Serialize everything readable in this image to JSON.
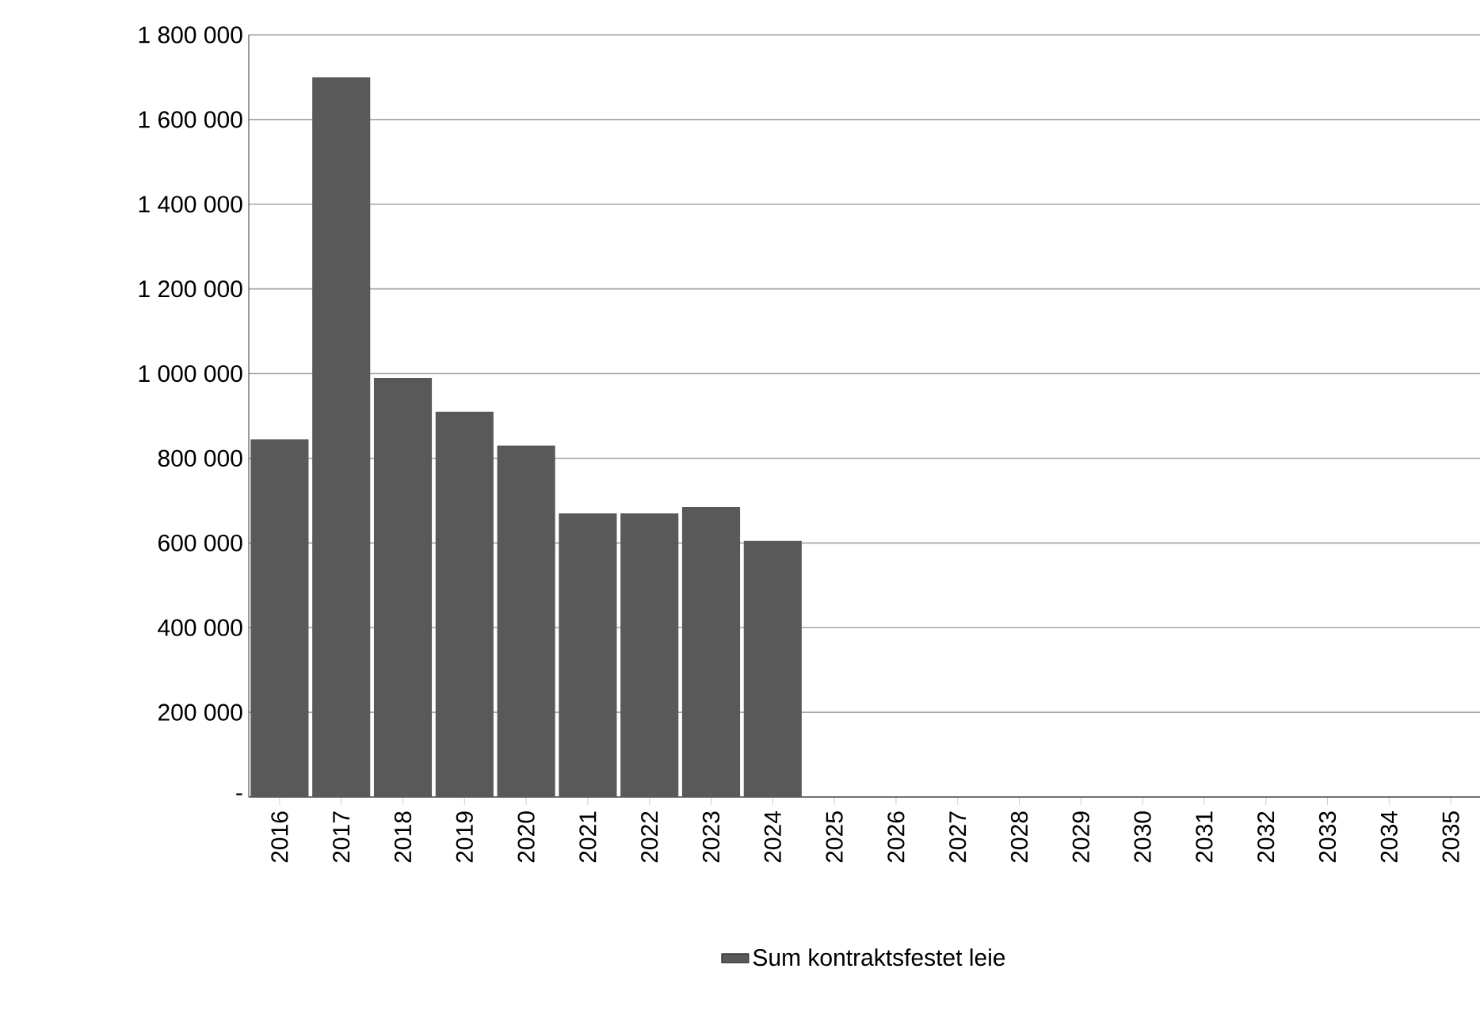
{
  "chart_data": {
    "type": "bar",
    "categories": [
      "2016",
      "2017",
      "2018",
      "2019",
      "2020",
      "2021",
      "2022",
      "2023",
      "2024",
      "2025",
      "2026",
      "2027",
      "2028",
      "2029",
      "2030",
      "2031",
      "2032",
      "2033",
      "2034",
      "2035"
    ],
    "series": [
      {
        "name": "Sum kontraktsfestet leie",
        "color": "#595959",
        "values": [
          845000,
          1700000,
          990000,
          910000,
          830000,
          670000,
          670000,
          685000,
          605000,
          null,
          null,
          null,
          null,
          null,
          null,
          null,
          null,
          null,
          null,
          null
        ]
      }
    ],
    "ylim": [
      0,
      1800000
    ],
    "yticks": [
      {
        "value": 0,
        "label": "-"
      },
      {
        "value": 200000,
        "label": "200 000"
      },
      {
        "value": 400000,
        "label": "400 000"
      },
      {
        "value": 600000,
        "label": "600 000"
      },
      {
        "value": 800000,
        "label": "800 000"
      },
      {
        "value": 1000000,
        "label": "1 000 000"
      },
      {
        "value": 1200000,
        "label": "1 200 000"
      },
      {
        "value": 1400000,
        "label": "1 400 000"
      },
      {
        "value": 1600000,
        "label": "1 600 000"
      },
      {
        "value": 1800000,
        "label": "1 800 000"
      }
    ],
    "grid": "y",
    "legend": "bottom"
  }
}
